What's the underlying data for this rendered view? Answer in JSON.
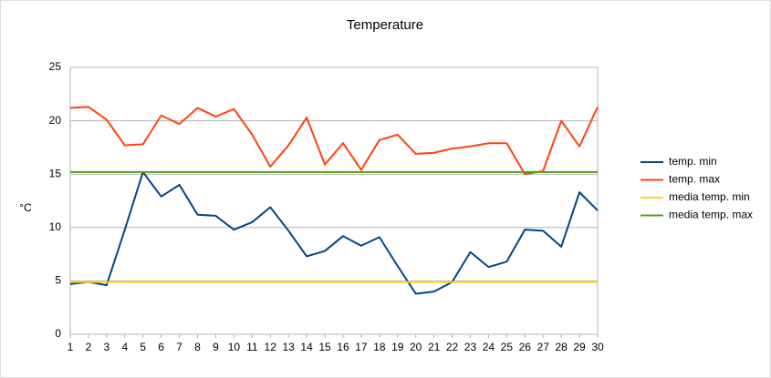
{
  "chart_data": {
    "type": "line",
    "title": "Temperature",
    "y_label": "°C",
    "x": [
      1,
      2,
      3,
      4,
      5,
      6,
      7,
      8,
      9,
      10,
      11,
      12,
      13,
      14,
      15,
      16,
      17,
      18,
      19,
      20,
      21,
      22,
      23,
      24,
      25,
      26,
      27,
      28,
      29,
      30
    ],
    "xlim": [
      1,
      30
    ],
    "xticks": [
      1,
      2,
      3,
      4,
      5,
      6,
      7,
      8,
      9,
      10,
      11,
      12,
      13,
      14,
      15,
      16,
      17,
      18,
      19,
      20,
      21,
      22,
      23,
      24,
      25,
      26,
      27,
      28,
      29,
      30
    ],
    "ylim": [
      0,
      25
    ],
    "yticks": [
      0,
      5,
      10,
      15,
      20,
      25
    ],
    "grid": true,
    "legend": "right",
    "series": [
      {
        "name": "temp. min",
        "color": "#004586",
        "values": [
          4.7,
          4.9,
          4.6,
          9.8,
          15.2,
          12.9,
          14.0,
          11.2,
          11.1,
          9.8,
          10.5,
          11.9,
          9.7,
          7.3,
          7.8,
          9.2,
          8.3,
          9.1,
          6.4,
          3.8,
          4.0,
          4.9,
          7.7,
          6.3,
          6.8,
          9.8,
          9.7,
          8.2,
          13.3,
          11.6
        ]
      },
      {
        "name": "temp. max",
        "color": "#ff420e",
        "values": [
          21.2,
          21.3,
          20.1,
          17.7,
          17.8,
          20.5,
          19.7,
          21.2,
          20.4,
          21.1,
          18.7,
          15.7,
          17.7,
          20.3,
          15.9,
          17.9,
          15.4,
          18.2,
          18.7,
          16.9,
          17.0,
          17.4,
          17.6,
          17.9,
          17.9,
          15.0,
          15.3,
          20.0,
          17.6,
          21.3
        ]
      },
      {
        "name": "media temp. min",
        "color": "#ffd320",
        "values": [
          4.9,
          4.9,
          4.9,
          4.9,
          4.9,
          4.9,
          4.9,
          4.9,
          4.9,
          4.9,
          4.9,
          4.9,
          4.9,
          4.9,
          4.9,
          4.9,
          4.9,
          4.9,
          4.9,
          4.9,
          4.9,
          4.9,
          4.9,
          4.9,
          4.9,
          4.9,
          4.9,
          4.9,
          4.9,
          4.9
        ]
      },
      {
        "name": "media temp. max",
        "color": "#579d1c",
        "values": [
          15.2,
          15.2,
          15.2,
          15.2,
          15.2,
          15.2,
          15.2,
          15.2,
          15.2,
          15.2,
          15.2,
          15.2,
          15.2,
          15.2,
          15.2,
          15.2,
          15.2,
          15.2,
          15.2,
          15.2,
          15.2,
          15.2,
          15.2,
          15.2,
          15.2,
          15.2,
          15.2,
          15.2,
          15.2,
          15.2
        ]
      }
    ]
  }
}
